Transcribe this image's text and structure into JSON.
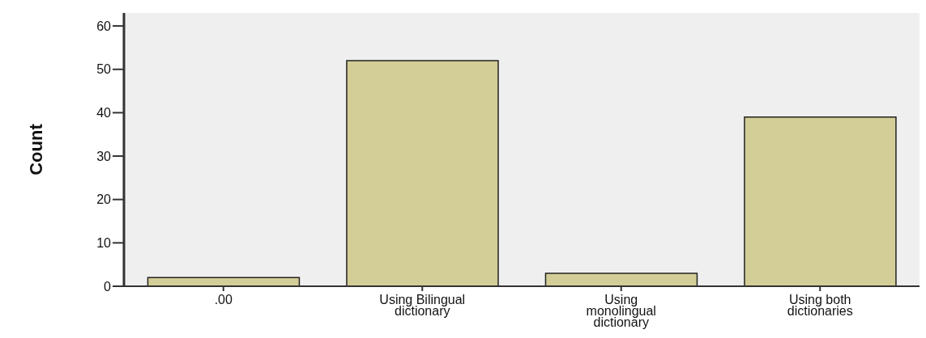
{
  "chart_data": {
    "type": "bar",
    "ylabel": "Count",
    "categories": [
      ".00",
      "Using Bilingual dictionary",
      "Using monolingual dictionary",
      "Using both dictionaries"
    ],
    "values": [
      2,
      52,
      3,
      39
    ],
    "color": "#d3cd97",
    "ylim": [
      0,
      63
    ],
    "yticks": [
      0,
      10,
      20,
      30,
      40,
      50,
      60
    ],
    "grid": false
  }
}
